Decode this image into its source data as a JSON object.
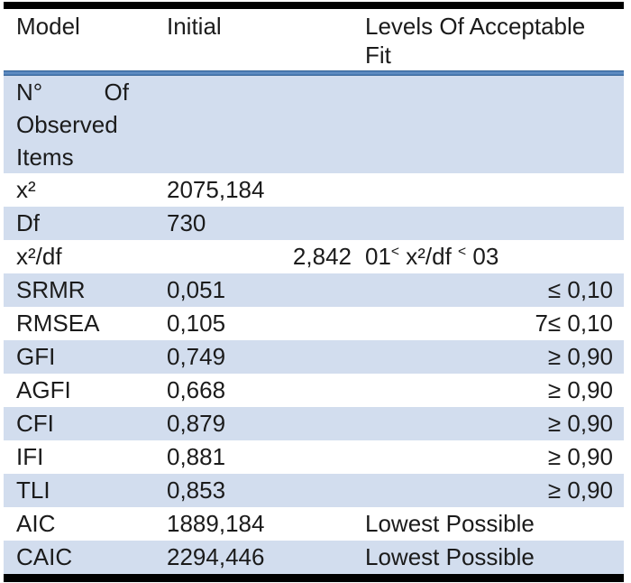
{
  "table": {
    "header": {
      "model": "Model",
      "initial": "Initial",
      "fit": "Levels Of Acceptable Fit"
    },
    "observed_row": {
      "word1": "N°",
      "word2": "Of",
      "word3": "Observed",
      "word4": "Items"
    },
    "rows": [
      {
        "model": "x²",
        "initial": "2075,184",
        "fit": ""
      },
      {
        "model": "Df",
        "initial": "730",
        "fit": ""
      },
      {
        "model": "x²/df",
        "initial": "2,842",
        "initial_align": "right",
        "fit_parts": [
          {
            "text": "01",
            "sup": false
          },
          {
            "text": "<",
            "sup": true
          },
          {
            "text": " x²/df ",
            "sup": false
          },
          {
            "text": "<",
            "sup": true
          },
          {
            "text": " 03",
            "sup": false
          }
        ]
      },
      {
        "model": "SRMR",
        "initial": "0,051",
        "fit": "≤ 0,10",
        "fit_align": "right"
      },
      {
        "model": "RMSEA",
        "initial": "0,105",
        "fit": "7≤ 0,10",
        "fit_align": "right"
      },
      {
        "model": "GFI",
        "initial": "0,749",
        "fit": "≥ 0,90",
        "fit_align": "right"
      },
      {
        "model": "AGFI",
        "initial": "0,668",
        "fit": "≥ 0,90",
        "fit_align": "right"
      },
      {
        "model": "CFI",
        "initial": "0,879",
        "fit": "≥ 0,90",
        "fit_align": "right"
      },
      {
        "model": "IFI",
        "initial": "0,881",
        "fit": "≥ 0,90",
        "fit_align": "right"
      },
      {
        "model": "TLI",
        "initial": "0,853",
        "fit": "≥ 0,90",
        "fit_align": "right"
      },
      {
        "model": "AIC",
        "initial": "1889,184",
        "fit": "Lowest Possible"
      },
      {
        "model": "CAIC",
        "initial": "2294,446",
        "fit": "Lowest Possible"
      }
    ],
    "colors": {
      "row_shade": "#d2ddee",
      "divider_blue": "#4f81bd",
      "border_black": "#000000",
      "text": "#1b1b1b"
    }
  }
}
